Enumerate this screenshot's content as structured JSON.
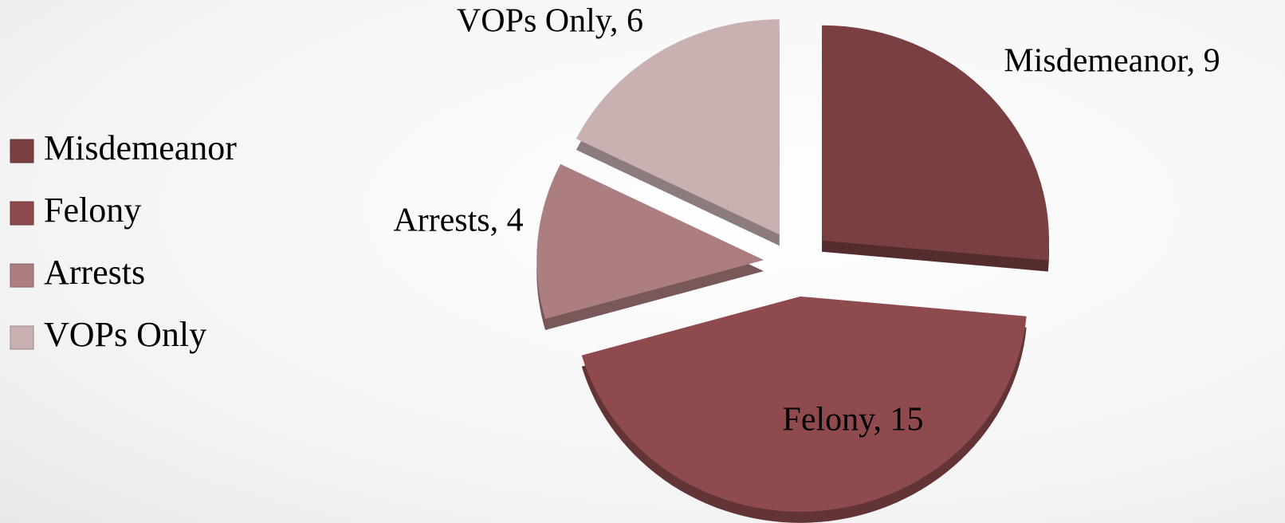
{
  "chart_data": {
    "type": "pie",
    "categories": [
      "Misdemeanor",
      "Felony",
      "Arrests",
      "VOPs Only"
    ],
    "values": [
      9,
      15,
      4,
      6
    ],
    "value_labels": [
      "Misdemeanor, 9",
      "Felony, 15",
      "Arrests, 4",
      "VOPs Only, 6"
    ],
    "colors": [
      "#7a3f41",
      "#8e4a4d",
      "#ad7e80",
      "#c9b1b2"
    ],
    "legend": "left"
  }
}
